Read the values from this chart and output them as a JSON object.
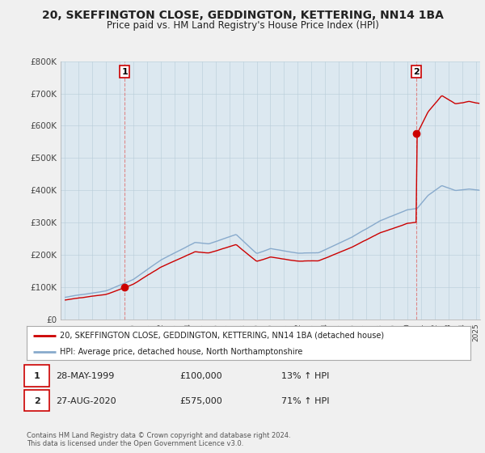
{
  "title_line1": "20, SKEFFINGTON CLOSE, GEDDINGTON, KETTERING, NN14 1BA",
  "title_line2": "Price paid vs. HM Land Registry's House Price Index (HPI)",
  "ylim": [
    0,
    800000
  ],
  "yticks": [
    0,
    100000,
    200000,
    300000,
    400000,
    500000,
    600000,
    700000,
    800000
  ],
  "ytick_labels": [
    "£0",
    "£100K",
    "£200K",
    "£300K",
    "£400K",
    "£500K",
    "£600K",
    "£700K",
    "£800K"
  ],
  "xlim_left": 1994.7,
  "xlim_right": 2025.3,
  "sale1_date": 1999.38,
  "sale1_price": 100000,
  "sale2_date": 2020.65,
  "sale2_price": 575000,
  "sale1_label": "1",
  "sale2_label": "2",
  "line_color_property": "#cc0000",
  "line_color_hpi": "#88aacc",
  "dashed_line_color": "#dd8888",
  "legend_property": "20, SKEFFINGTON CLOSE, GEDDINGTON, KETTERING, NN14 1BA (detached house)",
  "legend_hpi": "HPI: Average price, detached house, North Northamptonshire",
  "note1_label": "1",
  "note1_date": "28-MAY-1999",
  "note1_price": "£100,000",
  "note1_hpi": "13% ↑ HPI",
  "note2_label": "2",
  "note2_date": "27-AUG-2020",
  "note2_price": "£575,000",
  "note2_hpi": "71% ↑ HPI",
  "copyright": "Contains HM Land Registry data © Crown copyright and database right 2024.\nThis data is licensed under the Open Government Licence v3.0.",
  "background_color": "#f0f0f0",
  "plot_bg_color": "#dce8f0",
  "grid_color": "#b8ccd8",
  "title_fontsize": 10,
  "subtitle_fontsize": 8.5
}
